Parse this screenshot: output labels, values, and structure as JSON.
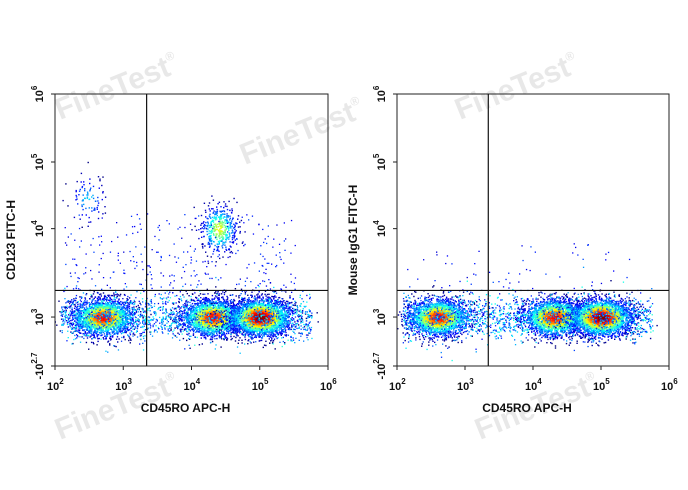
{
  "watermark": {
    "text": "FineTest",
    "mark": "®"
  },
  "chart_data": [
    {
      "type": "scatter",
      "style": "density dot plot (blue = low, red = high density)",
      "xlabel": "CD45RO APC-H",
      "ylabel": "CD123 FITC-H",
      "x_scale": "log",
      "y_scale": "biexponential",
      "xlim": [
        100,
        1000000
      ],
      "x_ticks": [
        {
          "base": "10",
          "exp": "2"
        },
        {
          "base": "10",
          "exp": "3"
        },
        {
          "base": "10",
          "exp": "4"
        },
        {
          "base": "10",
          "exp": "5"
        },
        {
          "base": "10",
          "exp": "6"
        }
      ],
      "y_ticks": [
        {
          "base": "-10",
          "exp": "2.7"
        },
        {
          "base": "10",
          "exp": "3"
        },
        {
          "base": "10",
          "exp": "4"
        },
        {
          "base": "10",
          "exp": "5"
        },
        {
          "base": "10",
          "exp": "6"
        }
      ],
      "quadrant_gate": {
        "x": 2200,
        "y": 2000
      },
      "populations": [
        {
          "x_center": 500,
          "y_center": 1000,
          "density": "high"
        },
        {
          "x_center": 20000,
          "y_center": 1000,
          "density": "high"
        },
        {
          "x_center": 100000,
          "y_center": 1000,
          "density": "very high"
        },
        {
          "x_center": 25000,
          "y_center": 10000,
          "density": "medium"
        },
        {
          "x_center": 300,
          "y_center": 28000,
          "density": "low"
        }
      ]
    },
    {
      "type": "scatter",
      "style": "density dot plot (blue = low, red = high density)",
      "xlabel": "CD45RO APC-H",
      "ylabel": "Mouse IgG1 FITC-H",
      "x_scale": "log",
      "y_scale": "biexponential",
      "xlim": [
        100,
        1000000
      ],
      "x_ticks": [
        {
          "base": "10",
          "exp": "2"
        },
        {
          "base": "10",
          "exp": "3"
        },
        {
          "base": "10",
          "exp": "4"
        },
        {
          "base": "10",
          "exp": "5"
        },
        {
          "base": "10",
          "exp": "6"
        }
      ],
      "y_ticks": [
        {
          "base": "-10",
          "exp": "2.7"
        },
        {
          "base": "10",
          "exp": "3"
        },
        {
          "base": "10",
          "exp": "4"
        },
        {
          "base": "10",
          "exp": "5"
        },
        {
          "base": "10",
          "exp": "6"
        }
      ],
      "quadrant_gate": {
        "x": 2200,
        "y": 2000
      },
      "populations": [
        {
          "x_center": 400,
          "y_center": 1000,
          "density": "high"
        },
        {
          "x_center": 20000,
          "y_center": 1000,
          "density": "high"
        },
        {
          "x_center": 100000,
          "y_center": 1000,
          "density": "very high"
        }
      ]
    }
  ]
}
